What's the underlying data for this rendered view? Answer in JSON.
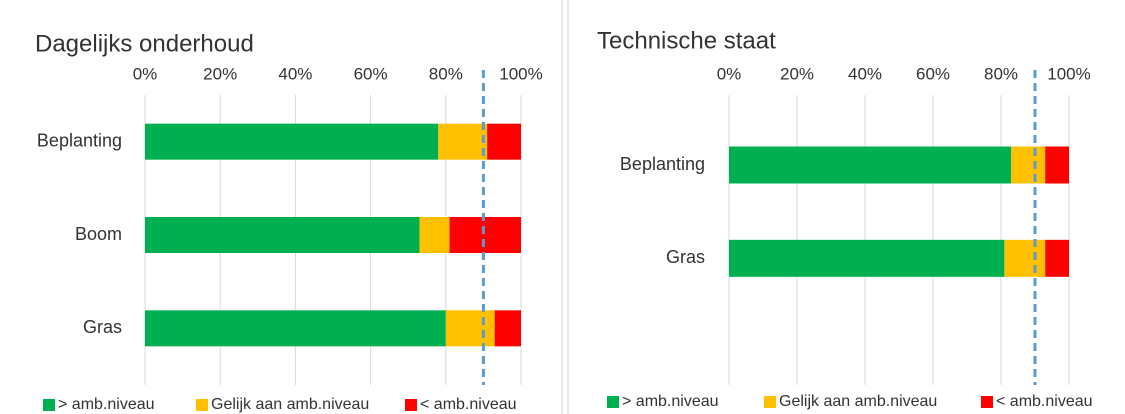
{
  "chart_data": [
    {
      "type": "stacked_barh",
      "title": "Dagelijks onderhoud",
      "categories": [
        "Beplanting",
        "Boom",
        "Gras"
      ],
      "series": [
        {
          "name": "> amb.niveau",
          "color": "#00b050",
          "values": [
            78,
            73,
            80
          ]
        },
        {
          "name": "Gelijk aan amb.niveau",
          "color": "#ffc000",
          "values": [
            13,
            8,
            13
          ]
        },
        {
          "name": "< amb.niveau",
          "color": "#ff0000",
          "values": [
            9,
            19,
            7
          ]
        }
      ],
      "xlim": [
        0,
        100
      ],
      "xticks": [
        {
          "value": 0,
          "label": "0%"
        },
        {
          "value": 20,
          "label": "20%"
        },
        {
          "value": 40,
          "label": "40%"
        },
        {
          "value": 60,
          "label": "60%"
        },
        {
          "value": 80,
          "label": "80%"
        },
        {
          "value": 100,
          "label": "100%"
        }
      ],
      "reference_line": 90,
      "reference_color": "#5b9bd5",
      "grid": true,
      "legend": "bottom"
    },
    {
      "type": "stacked_barh",
      "title": "Technische staat",
      "categories": [
        "Beplanting",
        "Gras"
      ],
      "series": [
        {
          "name": "> amb.niveau",
          "color": "#00b050",
          "values": [
            83,
            81
          ]
        },
        {
          "name": "Gelijk aan amb.niveau",
          "color": "#ffc000",
          "values": [
            10,
            12
          ]
        },
        {
          "name": "< amb.niveau",
          "color": "#ff0000",
          "values": [
            7,
            7
          ]
        }
      ],
      "xlim": [
        0,
        100
      ],
      "xticks": [
        {
          "value": 0,
          "label": "0%"
        },
        {
          "value": 20,
          "label": "20%"
        },
        {
          "value": 40,
          "label": "40%"
        },
        {
          "value": 60,
          "label": "60%"
        },
        {
          "value": 80,
          "label": "80%"
        },
        {
          "value": 100,
          "label": "100%"
        }
      ],
      "reference_line": 90,
      "reference_color": "#5b9bd5",
      "grid": true,
      "legend": "bottom"
    }
  ]
}
